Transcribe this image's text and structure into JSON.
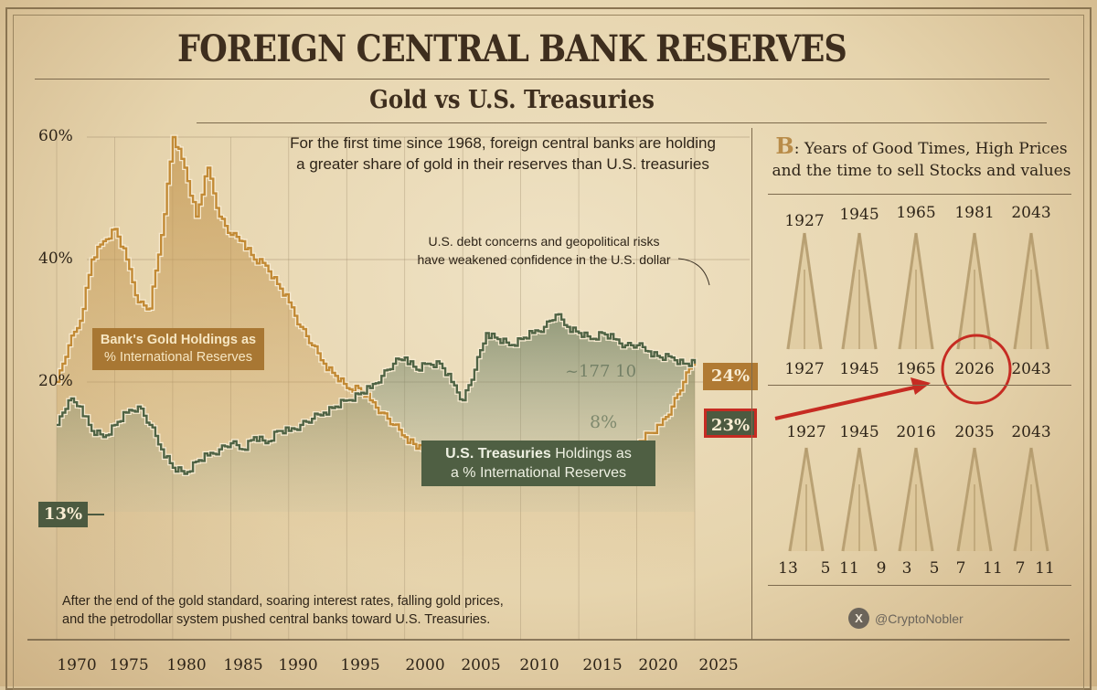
{
  "header": {
    "title": "FOREIGN CENTRAL BANK RESERVES",
    "subtitle": "Gold vs U.S. Treasuries"
  },
  "annotations": {
    "intro_line1": "For the first time since 1968, foreign central banks are holding",
    "intro_line2": "a greater share of gold in their reserves than U.S. treasuries",
    "note_line1": "U.S. debt concerns and geopolitical risks",
    "note_line2": "have weakened confidence in the U.S. dollar",
    "footnote_line1": "After the end of the gold standard, soaring interest rates, falling gold prices,",
    "footnote_line2": "and the petrodollar system pushed central banks toward U.S. Treasuries.",
    "ghost_text_1": "~177 10",
    "ghost_text_2": "8%"
  },
  "legend": {
    "gold_line1": "Bank's Gold Holdings as",
    "gold_line2": "% International Reserves",
    "treasuries_bold": "U.S. Treasuries",
    "treasuries_rest": " Holdings as",
    "treasuries_line2": "a % International Reserves"
  },
  "value_tags": {
    "gold_end": "24%",
    "treasuries_end": "23%",
    "treasuries_start": "13%"
  },
  "colors": {
    "gold": "#c28a35",
    "gold_fill": "#c9a064",
    "treasuries": "#4f6344",
    "treasuries_fill": "#7f8d70",
    "highlight_red": "#c62b22",
    "ink": "#2e2418"
  },
  "chart_data": {
    "type": "area",
    "title": "FOREIGN CENTRAL BANK RESERVES",
    "subtitle": "Gold vs U.S. Treasuries",
    "xlabel": "",
    "ylabel": "",
    "xlim": [
      1970,
      2025
    ],
    "ylim": [
      0,
      60
    ],
    "y_ticks": [
      {
        "value": 60,
        "label": "60%"
      },
      {
        "value": 40,
        "label": "40%"
      },
      {
        "value": 20,
        "label": "20%"
      }
    ],
    "x_ticks": [
      1970,
      1975,
      1980,
      1985,
      1990,
      1995,
      2000,
      2005,
      2010,
      2015,
      2020,
      2025
    ],
    "x_tick_labels": [
      "1970",
      "1975",
      "1980",
      "1985",
      "1990",
      "1995",
      "2000",
      "2005",
      "2010",
      "2015",
      "2020",
      "2025"
    ],
    "grid": true,
    "series": [
      {
        "name": "Bank's Gold Holdings as % International Reserves",
        "color": "#c28a35",
        "x": [
          1970,
          1971,
          1972,
          1973,
          1974,
          1975,
          1976,
          1977,
          1978,
          1979,
          1980,
          1981,
          1982,
          1983,
          1984,
          1985,
          1986,
          1987,
          1988,
          1989,
          1990,
          1991,
          1992,
          1993,
          1994,
          1995,
          1996,
          1997,
          1998,
          1999,
          2000,
          2002,
          2004,
          2006,
          2008,
          2010,
          2012,
          2014,
          2016,
          2018,
          2020,
          2022,
          2023,
          2024,
          2025
        ],
        "values": [
          20,
          26,
          30,
          40,
          43,
          45,
          40,
          33,
          32,
          44,
          60,
          55,
          47,
          55,
          47,
          44,
          43,
          40,
          39,
          36,
          33,
          29,
          26,
          23,
          21,
          19,
          19,
          17,
          15,
          13,
          11,
          8,
          6,
          7,
          6,
          9,
          8,
          5,
          6,
          8,
          10,
          13,
          16,
          20,
          24
        ]
      },
      {
        "name": "U.S. Treasuries Holdings as a % International Reserves",
        "color": "#4f6344",
        "x": [
          1970,
          1971,
          1972,
          1973,
          1974,
          1975,
          1976,
          1977,
          1978,
          1979,
          1980,
          1981,
          1982,
          1983,
          1984,
          1985,
          1986,
          1987,
          1988,
          1989,
          1990,
          1991,
          1992,
          1993,
          1994,
          1995,
          1996,
          1997,
          1998,
          1999,
          2000,
          2001,
          2002,
          2003,
          2004,
          2005,
          2006,
          2007,
          2008,
          2009,
          2010,
          2011,
          2012,
          2013,
          2014,
          2015,
          2016,
          2017,
          2018,
          2019,
          2020,
          2021,
          2022,
          2023,
          2024,
          2025
        ],
        "values": [
          13,
          17,
          16,
          12,
          11,
          13,
          15,
          16,
          13,
          9,
          6,
          5,
          7,
          8,
          9,
          10,
          9,
          11,
          10,
          12,
          12,
          13,
          14,
          15,
          16,
          17,
          18,
          19,
          21,
          23,
          24,
          22,
          23,
          23,
          20,
          17,
          22,
          28,
          27,
          26,
          27,
          28,
          29,
          31,
          29,
          28,
          27,
          28,
          27,
          26,
          26,
          25,
          24,
          24,
          23,
          23
        ]
      }
    ],
    "end_labels": [
      {
        "series": "gold",
        "year": 2025,
        "value": 24,
        "label": "24%"
      },
      {
        "series": "treasuries",
        "year": 2025,
        "value": 23,
        "label": "23%"
      }
    ],
    "start_label": {
      "series": "treasuries",
      "year": 1970,
      "value": 13,
      "label": "13%"
    },
    "legend_placement": "inline"
  },
  "side_panel": {
    "b_letter": "B",
    "title_line1": ": Years of Good Times, High Prices",
    "title_line2": "and the time to sell Stocks and values",
    "row1_years": [
      "1927",
      "1945",
      "1965",
      "1981",
      "2043"
    ],
    "row2_years": [
      "1927",
      "1945",
      "1965",
      "2026",
      "2043"
    ],
    "highlighted_year": "2026",
    "row3_years": [
      "1927",
      "1945",
      "2016",
      "2035",
      "2043"
    ],
    "row3_numbers": [
      "13",
      "5",
      "11",
      "9",
      "3",
      "5",
      "7",
      "11",
      "7",
      "11"
    ]
  },
  "credit": {
    "platform_icon": "x-logo-icon",
    "platform_glyph": "X",
    "handle": "@CryptoNobler"
  }
}
